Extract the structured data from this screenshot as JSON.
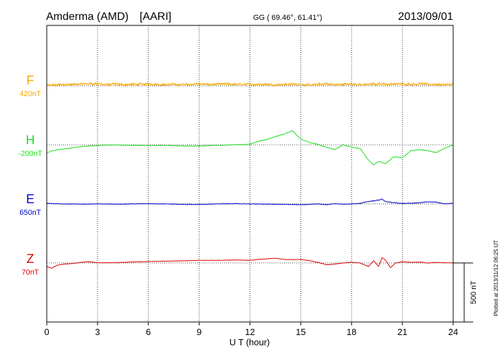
{
  "chart_data": {
    "type": "line",
    "station": "Amderma (AMD)",
    "network": "[AARI]",
    "coordinates": "GG ( 69.46°,  61.41°)",
    "date": "2013/09/01",
    "xlabel": "U T (hour)",
    "xlim": [
      0,
      24
    ],
    "x_ticks": [
      "0",
      "3",
      "6",
      "9",
      "12",
      "15",
      "18",
      "21",
      "24"
    ],
    "scale_label": "500 nT",
    "plotted_note": "Plotted at 2013/11/12 06:25 UT",
    "colors": {
      "F": "#f5a800",
      "H": "#22dd22",
      "E": "#0000cc",
      "Z": "#dd0000"
    },
    "series": [
      {
        "name": "F",
        "baseline_label": "420nT",
        "color": "#f5a800",
        "noise": 12,
        "x": [
          0,
          0.5,
          1,
          1.5,
          2,
          2.5,
          3,
          3.5,
          4,
          4.5,
          5,
          5.5,
          6,
          6.5,
          7,
          7.5,
          8,
          8.5,
          9,
          9.5,
          10,
          10.5,
          11,
          11.5,
          12,
          12.5,
          13,
          13.5,
          14,
          14.5,
          15,
          15.5,
          16,
          16.5,
          17,
          17.5,
          18,
          18.5,
          19,
          19.5,
          19.8,
          20,
          20.5,
          21,
          21.5,
          22,
          22.5,
          23,
          23.5,
          24
        ],
        "values": [
          423,
          427,
          433,
          430,
          436,
          437,
          438,
          429,
          434,
          430,
          432,
          433,
          436,
          432,
          430,
          432,
          430,
          433,
          436,
          431,
          433,
          435,
          431,
          431,
          432,
          433,
          433,
          429,
          431,
          433,
          432,
          426,
          431,
          437,
          428,
          433,
          436,
          427,
          432,
          434,
          439,
          433,
          435,
          437,
          432,
          437,
          432,
          432,
          430,
          430
        ]
      },
      {
        "name": "H",
        "baseline_label": "-200nT",
        "color": "#22dd22",
        "noise": 3,
        "x": [
          0,
          0.3,
          1,
          1.5,
          2,
          3,
          4,
          5,
          6,
          7,
          8,
          9,
          10,
          11,
          12,
          12.5,
          13,
          13.5,
          14,
          14.5,
          15,
          15.5,
          16,
          16.5,
          17,
          17.5,
          18,
          18.5,
          19,
          19.3,
          19.6,
          20,
          20.5,
          21,
          21.5,
          22,
          22.5,
          23,
          23.5,
          24
        ],
        "values": [
          -270,
          -250,
          -235,
          -225,
          -215,
          -205,
          -200,
          -205,
          -205,
          -205,
          -210,
          -210,
          -205,
          -200,
          -195,
          -170,
          -155,
          -130,
          -110,
          -80,
          -150,
          -180,
          -195,
          -220,
          -240,
          -200,
          -220,
          -230,
          -330,
          -370,
          -340,
          -360,
          -300,
          -310,
          -250,
          -240,
          -250,
          -265,
          -230,
          -200
        ]
      },
      {
        "name": "E",
        "baseline_label": "650nT",
        "color": "#0000cc",
        "noise": 3,
        "x": [
          0,
          1,
          2,
          3,
          4,
          5,
          6,
          7,
          8,
          9,
          10,
          11,
          12,
          13,
          14,
          15,
          16,
          16.5,
          17,
          17.5,
          18,
          18.5,
          19,
          19.5,
          19.8,
          20,
          20.5,
          21,
          21.5,
          22,
          22.5,
          23,
          23.5,
          24
        ],
        "values": [
          655,
          650,
          648,
          650,
          648,
          650,
          652,
          650,
          646,
          645,
          650,
          652,
          650,
          648,
          646,
          643,
          650,
          643,
          652,
          648,
          650,
          655,
          670,
          680,
          690,
          670,
          660,
          655,
          655,
          660,
          668,
          665,
          650,
          655
        ]
      },
      {
        "name": "Z",
        "baseline_label": "70nT",
        "color": "#dd0000",
        "noise": 2,
        "x": [
          0,
          0.3,
          0.6,
          1,
          1.5,
          2,
          2.5,
          3,
          4,
          5,
          6,
          7,
          8,
          9,
          10,
          11,
          12,
          12.5,
          13,
          13.5,
          14,
          14.5,
          15,
          15.5,
          16,
          16.5,
          17,
          17.5,
          18,
          18.5,
          19,
          19.3,
          19.6,
          19.8,
          20,
          20.3,
          20.6,
          21,
          21.5,
          22,
          22.5,
          23,
          23.5,
          24
        ],
        "values": [
          40,
          25,
          50,
          60,
          65,
          75,
          80,
          72,
          72,
          78,
          82,
          85,
          88,
          92,
          92,
          95,
          92,
          100,
          105,
          110,
          100,
          98,
          100,
          90,
          75,
          55,
          60,
          70,
          75,
          70,
          40,
          90,
          40,
          115,
          95,
          30,
          70,
          80,
          75,
          78,
          70,
          75,
          72,
          70
        ]
      }
    ]
  }
}
